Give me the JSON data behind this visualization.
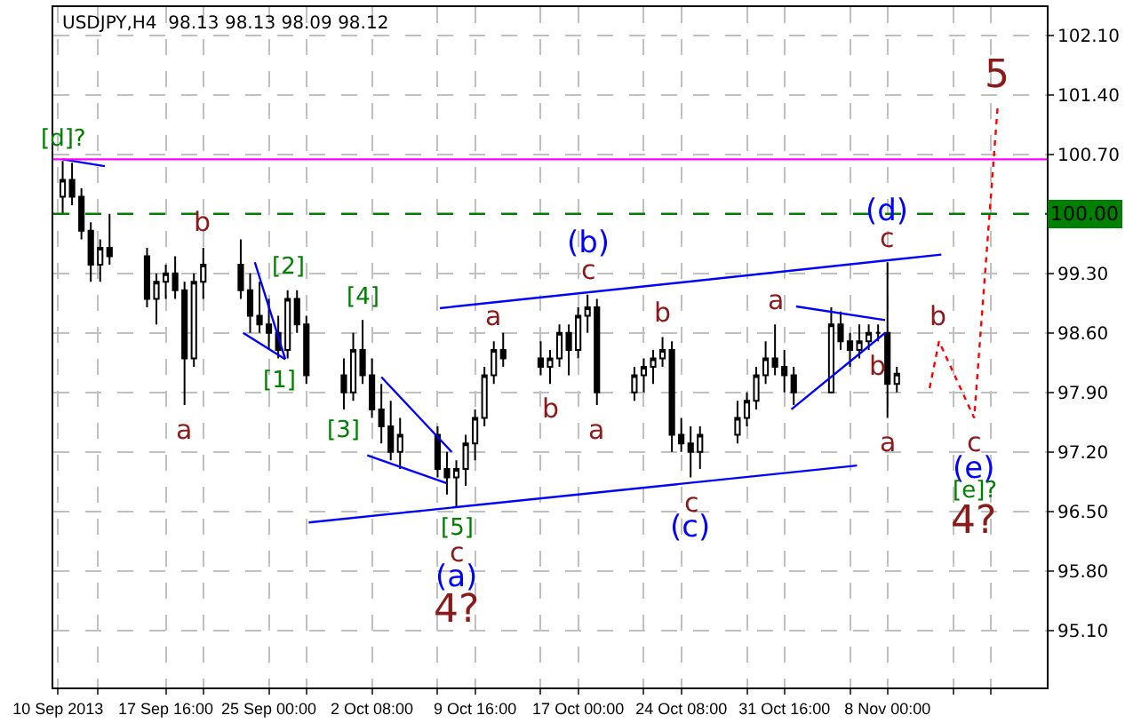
{
  "chart_data": {
    "type": "candlestick",
    "title": "USDJPY,H4  98.13 98.13 98.09 98.12",
    "x": [
      "2013-09-10T08:00",
      "2013-09-11T00:00",
      "2013-09-11T16:00",
      "2013-09-12T08:00",
      "2013-09-13T00:00",
      "2013-09-13T16:00",
      "2013-09-16T08:00",
      "2013-09-17T00:00",
      "2013-09-17T16:00",
      "2013-09-18T08:00",
      "2013-09-19T00:00",
      "2013-09-19T16:00",
      "2013-09-20T08:00",
      "2013-09-23T00:00",
      "2013-09-23T16:00",
      "2013-09-24T08:00",
      "2013-09-25T00:00",
      "2013-09-25T16:00",
      "2013-09-26T08:00",
      "2013-09-27T00:00",
      "2013-09-27T16:00",
      "2013-09-30T08:00",
      "2013-10-01T00:00",
      "2013-10-01T16:00",
      "2013-10-02T08:00",
      "2013-10-03T00:00",
      "2013-10-03T16:00",
      "2013-10-04T08:00",
      "2013-10-07T00:00",
      "2013-10-07T16:00",
      "2013-10-08T08:00",
      "2013-10-09T00:00",
      "2013-10-09T16:00",
      "2013-10-10T08:00",
      "2013-10-11T00:00",
      "2013-10-11T16:00",
      "2013-10-14T08:00",
      "2013-10-15T00:00",
      "2013-10-15T16:00",
      "2013-10-16T08:00",
      "2013-10-17T00:00",
      "2013-10-17T16:00",
      "2013-10-18T08:00",
      "2013-10-21T00:00",
      "2013-10-21T16:00",
      "2013-10-22T08:00",
      "2013-10-23T00:00",
      "2013-10-23T16:00",
      "2013-10-24T08:00",
      "2013-10-25T00:00",
      "2013-10-25T16:00",
      "2013-10-28T08:00",
      "2013-10-29T00:00",
      "2013-10-29T16:00",
      "2013-10-30T08:00",
      "2013-10-31T00:00",
      "2013-10-31T16:00",
      "2013-11-01T08:00",
      "2013-11-04T00:00",
      "2013-11-04T16:00",
      "2013-11-05T08:00",
      "2013-11-06T00:00",
      "2013-11-06T16:00",
      "2013-11-07T08:00",
      "2013-11-08T00:00",
      "2013-11-08T16:00"
    ],
    "ohlc": [
      [
        100.2,
        100.62,
        100.0,
        100.4
      ],
      [
        100.4,
        100.6,
        100.1,
        100.2
      ],
      [
        100.2,
        100.3,
        99.7,
        99.8
      ],
      [
        99.8,
        99.9,
        99.2,
        99.4
      ],
      [
        99.4,
        99.7,
        99.2,
        99.6
      ],
      [
        99.6,
        100.0,
        99.4,
        99.5
      ],
      [
        99.5,
        99.6,
        98.9,
        99.0
      ],
      [
        99.0,
        99.3,
        98.7,
        99.2
      ],
      [
        99.2,
        99.4,
        99.0,
        99.3
      ],
      [
        99.3,
        99.5,
        99.0,
        99.1
      ],
      [
        99.1,
        99.2,
        97.75,
        98.3
      ],
      [
        98.3,
        99.3,
        98.2,
        99.2
      ],
      [
        99.2,
        99.6,
        99.0,
        99.4
      ],
      [
        99.4,
        99.7,
        99.0,
        99.1
      ],
      [
        99.1,
        99.3,
        98.6,
        98.8
      ],
      [
        98.8,
        99.2,
        98.6,
        98.7
      ],
      [
        98.7,
        99.0,
        98.4,
        98.6
      ],
      [
        98.6,
        98.8,
        98.3,
        98.4
      ],
      [
        98.4,
        99.1,
        98.3,
        99.0
      ],
      [
        99.0,
        99.1,
        98.6,
        98.7
      ],
      [
        98.7,
        98.8,
        98.0,
        98.1
      ],
      [
        98.1,
        98.3,
        97.7,
        97.9
      ],
      [
        97.9,
        98.6,
        97.8,
        98.4
      ],
      [
        98.4,
        98.75,
        98.0,
        98.1
      ],
      [
        98.1,
        98.3,
        97.6,
        97.7
      ],
      [
        97.7,
        98.0,
        97.3,
        97.5
      ],
      [
        97.5,
        97.8,
        97.1,
        97.2
      ],
      [
        97.2,
        97.6,
        97.0,
        97.4
      ],
      [
        97.4,
        97.5,
        96.9,
        97.0
      ],
      [
        97.0,
        97.2,
        96.7,
        96.9
      ],
      [
        96.9,
        97.1,
        96.56,
        97.0
      ],
      [
        97.0,
        97.4,
        96.8,
        97.3
      ],
      [
        97.3,
        97.7,
        97.1,
        97.6
      ],
      [
        97.6,
        98.2,
        97.5,
        98.1
      ],
      [
        98.1,
        98.5,
        98.0,
        98.4
      ],
      [
        98.4,
        98.6,
        98.2,
        98.3
      ],
      [
        98.3,
        98.5,
        98.1,
        98.2
      ],
      [
        98.2,
        98.4,
        98.0,
        98.3
      ],
      [
        98.3,
        98.7,
        98.2,
        98.6
      ],
      [
        98.6,
        98.7,
        98.1,
        98.4
      ],
      [
        98.4,
        98.9,
        98.3,
        98.8
      ],
      [
        98.8,
        99.05,
        98.6,
        98.9
      ],
      [
        98.9,
        99.0,
        97.75,
        97.9
      ],
      [
        97.9,
        98.2,
        97.8,
        98.1
      ],
      [
        98.1,
        98.3,
        97.9,
        98.2
      ],
      [
        98.2,
        98.4,
        98.0,
        98.3
      ],
      [
        98.3,
        98.55,
        98.2,
        98.4
      ],
      [
        98.4,
        98.5,
        97.2,
        97.4
      ],
      [
        97.4,
        97.6,
        97.2,
        97.3
      ],
      [
        97.3,
        97.5,
        96.9,
        97.2
      ],
      [
        97.2,
        97.5,
        97.0,
        97.4
      ],
      [
        97.4,
        97.8,
        97.3,
        97.6
      ],
      [
        97.6,
        97.9,
        97.5,
        97.8
      ],
      [
        97.8,
        98.2,
        97.7,
        98.1
      ],
      [
        98.1,
        98.5,
        98.0,
        98.3
      ],
      [
        98.3,
        98.7,
        98.1,
        98.2
      ],
      [
        98.2,
        98.4,
        97.9,
        98.1
      ],
      [
        98.1,
        98.2,
        97.75,
        97.9
      ],
      [
        97.9,
        98.9,
        97.9,
        98.7
      ],
      [
        98.7,
        98.85,
        98.4,
        98.5
      ],
      [
        98.5,
        98.6,
        98.2,
        98.4
      ],
      [
        98.4,
        98.7,
        98.3,
        98.5
      ],
      [
        98.5,
        98.7,
        98.4,
        98.6
      ],
      [
        98.6,
        98.7,
        98.5,
        98.6
      ],
      [
        98.6,
        99.43,
        97.6,
        98.0
      ],
      [
        98.0,
        98.2,
        97.9,
        98.12
      ]
    ],
    "color": "#000000",
    "series": [
      {
        "type": "line",
        "color": "#0000ff",
        "x": [
          "2013-09-10T08:00",
          "2013-09-13T08:00"
        ],
        "values": [
          100.64,
          100.56
        ]
      },
      {
        "type": "line",
        "color": "#0000ff",
        "x": [
          "2013-09-24T00:00",
          "2013-09-26T04:00"
        ],
        "values": [
          99.43,
          98.29
        ]
      },
      {
        "type": "line",
        "color": "#0000ff",
        "x": [
          "2013-09-23T04:00",
          "2013-09-26T04:00"
        ],
        "values": [
          98.6,
          98.29
        ]
      },
      {
        "type": "line",
        "color": "#0000ff",
        "x": [
          "2013-10-03T00:00",
          "2013-10-08T00:00"
        ],
        "values": [
          98.08,
          97.2
        ]
      },
      {
        "type": "line",
        "color": "#0000ff",
        "x": [
          "2013-10-02T00:00",
          "2013-10-07T16:00"
        ],
        "values": [
          97.16,
          96.83
        ]
      },
      {
        "type": "line",
        "color": "#0000ff",
        "x": [
          "2013-10-07T04:00",
          "2013-11-11T20:00"
        ],
        "values": [
          98.89,
          99.52
        ]
      },
      {
        "type": "line",
        "color": "#0000ff",
        "x": [
          "2013-09-27T20:00",
          "2013-11-05T20:00"
        ],
        "values": [
          96.37,
          97.04
        ]
      },
      {
        "type": "line",
        "color": "#0000ff",
        "x": [
          "2013-11-01T12:00",
          "2013-11-07T20:00"
        ],
        "values": [
          98.91,
          98.75
        ]
      },
      {
        "type": "line",
        "color": "#0000ff",
        "x": [
          "2013-11-01T04:00",
          "2013-11-07T20:00"
        ],
        "values": [
          97.7,
          98.6
        ]
      },
      {
        "type": "line",
        "color": "#ff0000",
        "line_style": "dotted",
        "x": [
          "2013-11-11T00:00",
          "2013-11-11T16:00",
          "2013-11-14T04:00",
          "2013-11-15T20:00"
        ],
        "values": [
          97.95,
          98.5,
          97.6,
          101.25
        ]
      }
    ],
    "ref_lines": [
      {
        "axis": "y",
        "value": 100.64,
        "color": "#ff00ff",
        "line_style": "solid"
      },
      {
        "axis": "y",
        "value": 100.0,
        "label": "100.00",
        "color": "#008000",
        "line_style": "dashed"
      }
    ],
    "annotations": [
      {
        "text": "[d]?",
        "x": "2013-09-10T08:00",
        "y": 100.62
      },
      {
        "text": "b",
        "x": "2013-09-20T08:00",
        "y": 99.6
      },
      {
        "text": "a",
        "x": "2013-09-19T00:00",
        "y": 97.75
      },
      {
        "text": "[2]",
        "x": "2013-09-26T08:00",
        "y": 99.1
      },
      {
        "text": "[4]",
        "x": "2013-10-01T16:00",
        "y": 98.75
      },
      {
        "text": "[1]",
        "x": "2013-09-25T16:00",
        "y": 98.3
      },
      {
        "text": "[3]",
        "x": "2013-09-30T08:00",
        "y": 97.7
      },
      {
        "text": "[5]",
        "x": "2013-10-08T08:00",
        "y": 96.56
      },
      {
        "text": "c",
        "x": "2013-10-08T08:00",
        "y": 96.56
      },
      {
        "text": "(a)",
        "x": "2013-10-08T08:00",
        "y": 96.56
      },
      {
        "text": "4?",
        "x": "2013-10-08T08:00",
        "y": 96.56
      },
      {
        "text": "c",
        "x": "2013-10-17T16:00",
        "y": 99.05
      },
      {
        "text": "(b)",
        "x": "2013-10-17T16:00",
        "y": 99.05
      },
      {
        "text": "a",
        "x": "2013-10-11T00:00",
        "y": 98.5
      },
      {
        "text": "b",
        "x": "2013-10-15T00:00",
        "y": 98.0
      },
      {
        "text": "a",
        "x": "2013-10-18T08:00",
        "y": 97.75
      },
      {
        "text": "b",
        "x": "2013-10-23T00:00",
        "y": 98.55
      },
      {
        "text": "c",
        "x": "2013-10-25T00:00",
        "y": 96.9
      },
      {
        "text": "(c)",
        "x": "2013-10-25T00:00",
        "y": 96.9
      },
      {
        "text": "a",
        "x": "2013-10-31T00:00",
        "y": 98.7
      },
      {
        "text": "b",
        "x": "2013-11-07T08:00",
        "y": 98.5
      },
      {
        "text": "a",
        "x": "2013-11-08T00:00",
        "y": 97.6
      },
      {
        "text": "c",
        "x": "2013-11-08T00:00",
        "y": 99.43
      },
      {
        "text": "(d)",
        "x": "2013-11-08T00:00",
        "y": 99.43
      },
      {
        "text": "b",
        "x": "2013-11-11T16:00",
        "y": 98.5
      },
      {
        "text": "c",
        "x": "2013-11-14T04:00",
        "y": 97.6
      },
      {
        "text": "(e)",
        "x": "2013-11-14T04:00",
        "y": 97.6
      },
      {
        "text": "[e]?",
        "x": "2013-11-14T04:00",
        "y": 97.6
      },
      {
        "text": "4?",
        "x": "2013-11-14T04:00",
        "y": 97.6
      },
      {
        "text": "5",
        "x": "2013-11-15T20:00",
        "y": 101.25
      }
    ],
    "xlim": [
      "2013-09-09T16:00",
      "2013-11-19T08:00"
    ],
    "xticks": [
      {
        "value": "2013-09-10T00:00",
        "label": "10 Sep 2013"
      },
      {
        "value": "2013-09-12T20:00",
        "label": null
      },
      {
        "value": "2013-09-17T16:00",
        "label": "17 Sep 16:00"
      },
      {
        "value": "2013-09-20T08:00",
        "label": null
      },
      {
        "value": "2013-09-25T00:00",
        "label": "25 Sep 00:00"
      },
      {
        "value": "2013-09-27T16:00",
        "label": null
      },
      {
        "value": "2013-10-02T08:00",
        "label": "2 Oct 08:00"
      },
      {
        "value": "2013-10-07T00:00",
        "label": null
      },
      {
        "value": "2013-10-09T16:00",
        "label": "9 Oct 16:00"
      },
      {
        "value": "2013-10-14T08:00",
        "label": null
      },
      {
        "value": "2013-10-17T00:00",
        "label": "17 Oct 00:00"
      },
      {
        "value": "2013-10-21T16:00",
        "label": null
      },
      {
        "value": "2013-10-24T08:00",
        "label": "24 Oct 08:00"
      },
      {
        "value": "2013-10-29T00:00",
        "label": null
      },
      {
        "value": "2013-10-31T16:00",
        "label": "31 Oct 16:00"
      },
      {
        "value": "2013-11-05T08:00",
        "label": null
      },
      {
        "value": "2013-11-08T00:00",
        "label": "8 Nov 00:00"
      },
      {
        "value": "2013-11-12T16:00",
        "label": null
      },
      {
        "value": "2013-11-15T08:00",
        "label": null
      }
    ],
    "ylim": [
      94.43,
      102.43
    ],
    "yticks": [
      {
        "value": 102.1,
        "label": "102.10"
      },
      {
        "value": 101.4,
        "label": "101.40"
      },
      {
        "value": 100.7,
        "label": "100.70"
      },
      {
        "value": 99.3,
        "label": "99.30"
      },
      {
        "value": 98.6,
        "label": "98.60"
      },
      {
        "value": 97.9,
        "label": "97.90"
      },
      {
        "value": 97.2,
        "label": "97.20"
      },
      {
        "value": 96.5,
        "label": "96.50"
      },
      {
        "value": 95.8,
        "label": "95.80"
      },
      {
        "value": 95.1,
        "label": "95.10"
      }
    ],
    "grid": true,
    "marker": "none"
  }
}
